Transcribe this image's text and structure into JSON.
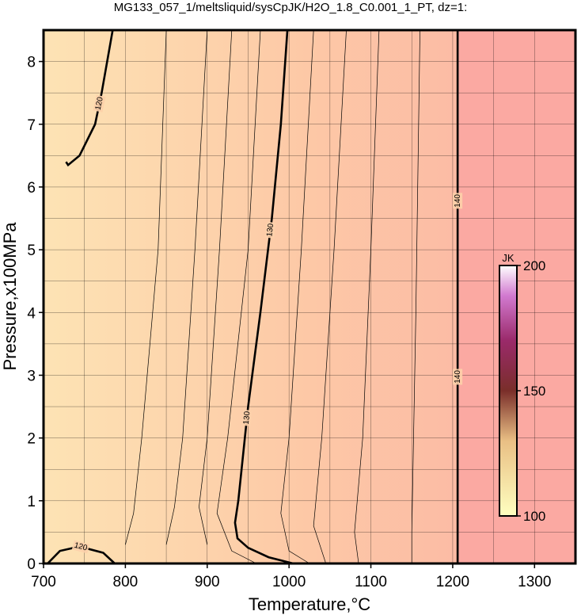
{
  "chart_data": {
    "type": "contour",
    "title": "MG133_057_1/meltsliquid/sysCpJK/H2O_1.8_C0.001_1_PT, dz=1:",
    "xlabel": "Temperature,°C",
    "ylabel": "Pressure,x100MPa",
    "xlim": [
      700,
      1350
    ],
    "ylim": [
      0,
      8.5
    ],
    "xticks": [
      700,
      800,
      900,
      1000,
      1100,
      1200,
      1300
    ],
    "yticks": [
      0,
      1,
      2,
      3,
      4,
      5,
      6,
      7,
      8
    ],
    "xgrid": [
      700,
      750,
      800,
      850,
      900,
      950,
      1000,
      1050,
      1100,
      1150,
      1200,
      1250,
      1300,
      1350
    ],
    "ygrid": [
      0,
      0.5,
      1,
      1.5,
      2,
      2.5,
      3,
      3.5,
      4,
      4.5,
      5,
      5.5,
      6,
      6.5,
      7,
      7.5,
      8,
      8.5
    ],
    "major_contours": [
      {
        "level": 120,
        "x": [
          784.5,
          771,
          763,
          744,
          730,
          727.5
        ],
        "y": [
          8.5,
          7.5,
          7,
          6.5,
          6.35,
          6.4
        ]
      },
      {
        "level": 120,
        "x": [
          705,
          720,
          744,
          773,
          787
        ],
        "y": [
          0,
          0.2,
          0.27,
          0.17,
          0
        ]
      },
      {
        "level": 130,
        "x": [
          998,
          990,
          979,
          965,
          950,
          938,
          934,
          937,
          950,
          975,
          1005
        ],
        "y": [
          8.5,
          7,
          5.5,
          4,
          2.5,
          1,
          0.65,
          0.4,
          0.25,
          0.1,
          0
        ]
      },
      {
        "level": 140,
        "x": [
          1206,
          1206
        ],
        "y": [
          0,
          8.5
        ]
      }
    ],
    "minor_contours": [
      {
        "level": 122,
        "x": [
          850,
          840,
          820,
          810,
          800
        ],
        "y": [
          8.5,
          5,
          2,
          0.8,
          0.3
        ]
      },
      {
        "level": 124,
        "x": [
          900,
          885,
          870,
          860,
          850
        ],
        "y": [
          8.5,
          5,
          2,
          0.9,
          0.3
        ]
      },
      {
        "level": 126,
        "x": [
          930,
          915,
          900,
          890,
          900
        ],
        "y": [
          8.5,
          5,
          2,
          0.9,
          0.3
        ]
      },
      {
        "level": 128,
        "x": [
          965,
          950,
          925,
          912,
          930,
          960
        ],
        "y": [
          8.5,
          5,
          2,
          0.8,
          0.2,
          0
        ]
      },
      {
        "level": 132,
        "x": [
          1030,
          1015,
          1000,
          990,
          1000,
          1025
        ],
        "y": [
          8.5,
          5,
          2,
          0.8,
          0.2,
          0
        ]
      },
      {
        "level": 134,
        "x": [
          1070,
          1055,
          1040,
          1030,
          1045
        ],
        "y": [
          8.5,
          5,
          2,
          0.6,
          0
        ]
      },
      {
        "level": 136,
        "x": [
          1110,
          1100,
          1090,
          1080,
          1085
        ],
        "y": [
          8.5,
          5,
          2,
          0.5,
          0
        ]
      },
      {
        "level": 138,
        "x": [
          1160,
          1155,
          1150,
          1150
        ],
        "y": [
          8.5,
          4,
          0.5,
          0
        ]
      }
    ],
    "colorbar": {
      "label": "JK",
      "lim": [
        100,
        200
      ],
      "ticks": [
        100,
        150,
        200
      ]
    }
  }
}
